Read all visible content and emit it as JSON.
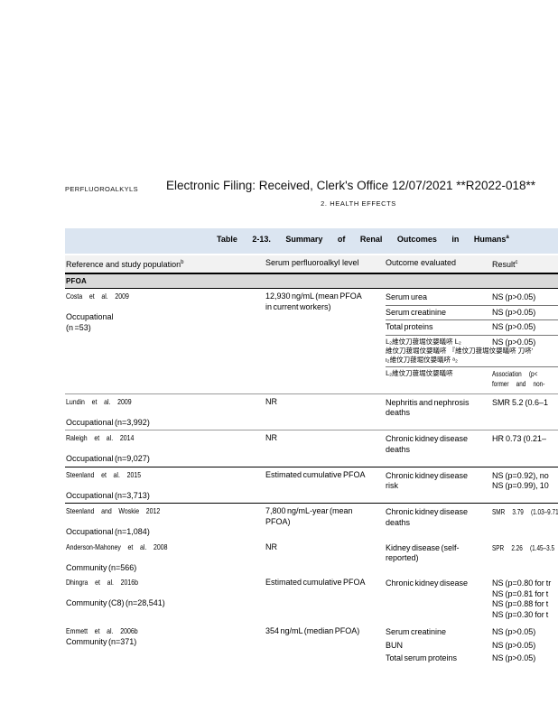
{
  "page": {
    "header_left": "PERFLUOROALKYLS",
    "title": "Electronic Filing: Received, Clerk's Office 12/07/2021 **R2022-018**",
    "subtitle": "2.  HEALTH EFFECTS"
  },
  "colors": {
    "caption_bg": "#dbe5f1",
    "header_row_bg": "#f2f2f2",
    "section_bar_bg": "#d9d9d9",
    "rule_black": "#000000",
    "rule_gray": "#9a9a9a"
  },
  "table": {
    "caption": {
      "text": "Table 2-13. Summary of Renal Outcomes in Humans",
      "sup": "a"
    },
    "columns": [
      {
        "label": "Reference and study population",
        "sup": "b"
      },
      {
        "label": "Serum perfluoroalkyl level",
        "sup": ""
      },
      {
        "label": "Outcome evaluated",
        "sup": ""
      },
      {
        "label": "Result",
        "sup": "c"
      }
    ],
    "section": "PFOA",
    "rows": [
      {
        "author": "Costa et al. 2009",
        "population": [
          "",
          "Occupational",
          "(n =53)"
        ],
        "serum": [
          "12,930 ng/mL (mean PFOA",
          "in current workers)"
        ],
        "border": "gray",
        "outcomes": [
          {
            "outcome": [
              "Serum urea"
            ],
            "result": [
              "NS (p>0.05)"
            ],
            "sep": true
          },
          {
            "outcome": [
              "Serum creatinine"
            ],
            "result": [
              "NS (p>0.05)"
            ],
            "sep": true
          },
          {
            "outcome": [
              "Total proteins"
            ],
            "result": [
              "NS (p>0.05)"
            ],
            "sep": true
          },
          {
            "outcome": [
              "Ⅼ₂維伩刀菝堀伩嫢㬢哜  Ⅼ₂",
              "維伩刀菝堀伩嫢㬢哜 『維伩刀菝堀伩嫢㬢哜 刀哜'",
              "ι₂維伩刀菝堀伩嫢㬢哜   ᵃ₂"
            ],
            "garbled": true,
            "result": [
              "NS (p>0.05)"
            ],
            "sep": true
          },
          {
            "outcome": [
              "Ⅼ₂維伩刀菝堀伩嫢㬢哜"
            ],
            "garbled": true,
            "result": [
              "Association (p<",
              "former and non-"
            ],
            "result_narrow": true,
            "sep": false
          }
        ]
      },
      {
        "author": "Lundin et al. 2009",
        "population": [
          "",
          "Occupational (n=3,992)"
        ],
        "serum": [
          "NR"
        ],
        "border": "gray",
        "outcomes": [
          {
            "outcome": [
              "Nephritis and nephrosis",
              "deaths"
            ],
            "result": [
              "SMR 5.2 (0.6–1"
            ],
            "sep": false
          }
        ]
      },
      {
        "author": "Raleigh et al. 2014",
        "population": [
          "",
          "Occupational (n=9,027)"
        ],
        "serum": [
          "NR"
        ],
        "border": "black",
        "outcomes": [
          {
            "outcome": [
              "Chronic kidney disease",
              "deaths"
            ],
            "result": [
              "HR 0.73 (0.21–"
            ],
            "sep": false
          }
        ]
      },
      {
        "author": "Steenland et al. 2015",
        "population": [
          "",
          "Occupational (n=3,713)"
        ],
        "serum": [
          "Estimated cumulative PFOA"
        ],
        "border": "black",
        "outcomes": [
          {
            "outcome": [
              "Chronic kidney disease",
              "risk"
            ],
            "result": [
              "NS (p=0.92), no",
              "NS (p=0.99), 10"
            ],
            "sep": false
          }
        ]
      },
      {
        "author": "Steenland and Woskie 2012",
        "population": [
          "",
          "Occupational (n=1,084)"
        ],
        "serum": [
          "7,800 ng/mL-year (mean",
          "PFOA)"
        ],
        "border": "none",
        "outcomes": [
          {
            "outcome": [
              "Chronic kidney disease",
              "deaths"
            ],
            "result": [
              "SMR 3.79 (1.03–9.71"
            ],
            "result_narrow": true,
            "sep": false
          }
        ]
      },
      {
        "author": "Anderson-Mahoney et al. 2008",
        "population": [
          "",
          "Community (n=566)"
        ],
        "serum": [
          "NR"
        ],
        "border": "none",
        "outcomes": [
          {
            "outcome": [
              "Kidney disease (self-",
              "reported)"
            ],
            "result": [
              "SPR 2.26 (1.45–3.5"
            ],
            "result_narrow": true,
            "sep": false
          }
        ]
      },
      {
        "author": "Dhingra et al. 2016b",
        "population": [
          "",
          "Community (C8) (n=28,541)"
        ],
        "serum": [
          "Estimated cumulative PFOA"
        ],
        "border": "none",
        "outcomes": [
          {
            "outcome": [
              "Chronic kidney disease"
            ],
            "result": [
              "NS (p=0.80 for tr",
              "NS (p=0.81 for t",
              "NS (p=0.88 for t",
              "NS (p=0.30 for t"
            ],
            "sep": false
          }
        ]
      },
      {
        "author": "Emmett et al. 2006b",
        "population": [
          "Community (n=371)"
        ],
        "serum": [
          "354 ng/mL (median PFOA)"
        ],
        "border": "none",
        "outcomes": [
          {
            "outcome": [
              "Serum creatinine"
            ],
            "result": [
              "NS (p>0.05)"
            ],
            "sep": false
          },
          {
            "outcome": [
              "BUN"
            ],
            "result": [
              "NS (p>0.05)"
            ],
            "sep": false
          },
          {
            "outcome": [
              "Total serum proteins"
            ],
            "result": [
              "NS (p>0.05)"
            ],
            "sep": false
          }
        ]
      }
    ]
  }
}
